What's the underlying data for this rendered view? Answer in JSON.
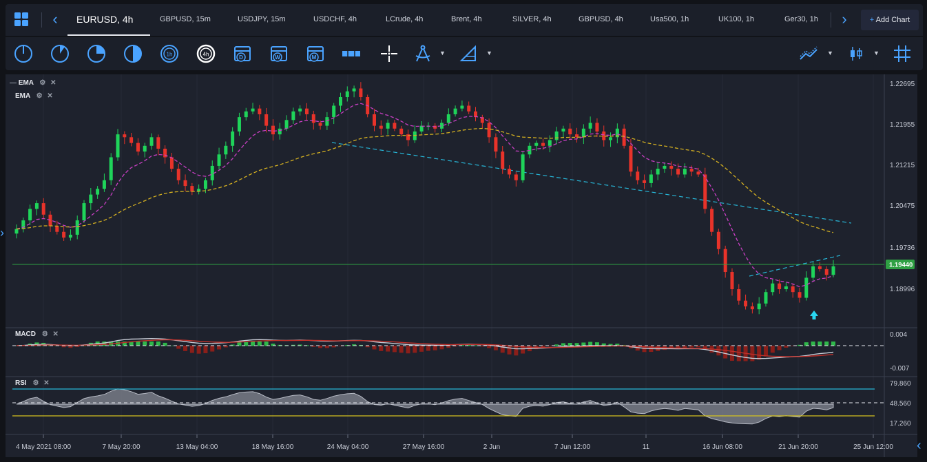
{
  "topbar": {
    "active_tab": "EURUSD, 4h",
    "tabs": [
      "GBPUSD, 15m",
      "USDJPY, 15m",
      "USDCHF, 4h",
      "LCrude, 4h",
      "Brent, 4h",
      "SILVER, 4h",
      "GBPUSD, 4h",
      "Usa500, 1h",
      "UK100, 1h",
      "Ger30, 1h"
    ],
    "add_chart": "Add Chart",
    "add_chart_icon": "+"
  },
  "toolbar": {
    "timeframe_1h": "1h",
    "timeframe_4h": "4h",
    "daily": "D",
    "weekly": "W",
    "monthly": "M"
  },
  "legend": {
    "ema1": "EMA",
    "ema2": "EMA",
    "macd": "MACD",
    "rsi": "RSI"
  },
  "price_axis": [
    "1.22695",
    "1.21955",
    "1.21215",
    "1.20475",
    "1.19736",
    "1.18996"
  ],
  "current_price": "1.19440",
  "macd_axis": [
    "0.004",
    "-0.007"
  ],
  "rsi_axis": [
    "79.860",
    "48.560",
    "17.260"
  ],
  "time_axis": [
    "4 May 2021 08:00",
    "7 May 20:00",
    "13 May 04:00",
    "18 May 16:00",
    "24 May 04:00",
    "27 May 16:00",
    "2 Jun",
    "7 Jun 12:00",
    "11",
    "16 Jun 08:00",
    "21 Jun 20:00",
    "25 Jun 12:00"
  ],
  "colors": {
    "up": "#1fd45a",
    "down": "#e8332a",
    "ema_fast": "#c83fc3",
    "ema_slow": "#d4b021",
    "trendline": "#27b7d8",
    "price_line": "#2fa043",
    "rsi_upper": "#27b7d8",
    "rsi_lower": "#d4c31f"
  },
  "chart_data": {
    "type": "candlestick",
    "symbol": "EURUSD",
    "timeframe": "4h",
    "ylim": [
      1.185,
      1.2275
    ],
    "closes": [
      1.2015,
      1.203,
      1.205,
      1.206,
      1.204,
      1.202,
      1.201,
      1.2,
      1.2005,
      1.203,
      1.206,
      1.2075,
      1.2085,
      1.21,
      1.214,
      1.218,
      1.2175,
      1.2165,
      1.215,
      1.216,
      1.2175,
      1.2155,
      1.214,
      1.212,
      1.21,
      1.209,
      1.208,
      1.2085,
      1.21,
      1.2125,
      1.2145,
      1.216,
      1.2185,
      1.221,
      1.222,
      1.2225,
      1.2215,
      1.2195,
      1.218,
      1.219,
      1.2205,
      1.222,
      1.2225,
      1.2215,
      1.22,
      1.2195,
      1.221,
      1.223,
      1.2245,
      1.2255,
      1.226,
      1.2245,
      1.2215,
      1.2195,
      1.219,
      1.22,
      1.219,
      1.218,
      1.217,
      1.2185,
      1.2195,
      1.2195,
      1.219,
      1.22,
      1.2215,
      1.2225,
      1.223,
      1.222,
      1.221,
      1.22,
      1.2175,
      1.215,
      1.212,
      1.211,
      1.21,
      1.2145,
      1.216,
      1.2165,
      1.216,
      1.217,
      1.2185,
      1.219,
      1.218,
      1.2175,
      1.219,
      1.22,
      1.2185,
      1.217,
      1.2175,
      1.219,
      1.216,
      1.2115,
      1.21,
      1.2095,
      1.211,
      1.212,
      1.2125,
      1.212,
      1.211,
      1.212,
      1.2115,
      1.211,
      1.205,
      1.201,
      1.198,
      1.194,
      1.191,
      1.189,
      1.188,
      1.1875,
      1.1885,
      1.1905,
      1.192,
      1.191,
      1.1915,
      1.1905,
      1.1895,
      1.193,
      1.195,
      1.1945,
      1.1935,
      1.195
    ]
  }
}
